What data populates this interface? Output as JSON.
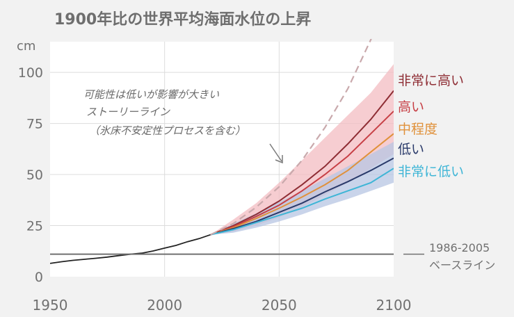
{
  "chart_data": {
    "type": "line",
    "title": "1900年比の世界平均海面水位の上昇",
    "ylabel": "cm",
    "xlabel": "",
    "xlim": [
      1950,
      2100
    ],
    "ylim": [
      0,
      115
    ],
    "x_ticks": [
      1950,
      2000,
      2050,
      2100
    ],
    "y_ticks": [
      0,
      25,
      50,
      75,
      100
    ],
    "grid": true,
    "baseline": {
      "value": 11,
      "label_lines": [
        "1986-2005",
        "ベースライン"
      ]
    },
    "observed": {
      "color": "#222222",
      "x": [
        1950,
        1955,
        1960,
        1965,
        1970,
        1975,
        1980,
        1985,
        1990,
        1995,
        2000,
        2005,
        2010,
        2015,
        2020
      ],
      "y": [
        6.5,
        7.3,
        8.0,
        8.5,
        9.0,
        9.6,
        10.3,
        11.0,
        11.5,
        12.6,
        14.0,
        15.3,
        17.1,
        18.6,
        20.5
      ]
    },
    "low_likelihood_high_impact": {
      "color": "#c9a9ac",
      "annotation_lines": [
        "可能性は低いが影響が大きい",
        "ストーリーライン",
        "（氷床不安定性プロセスを含む）"
      ],
      "x": [
        2020,
        2030,
        2040,
        2050,
        2060,
        2070,
        2080,
        2090,
        2100
      ],
      "y": [
        20.5,
        26,
        34,
        44,
        57,
        73,
        92,
        116,
        145
      ]
    },
    "series": [
      {
        "name": "非常に高い",
        "color": "#8e2d34",
        "x": [
          2020,
          2030,
          2040,
          2050,
          2060,
          2070,
          2080,
          2090,
          2100
        ],
        "y": [
          20.5,
          25,
          30.5,
          37,
          45,
          54,
          65,
          77,
          91
        ],
        "band_low": [
          20.5,
          22,
          25,
          29,
          34,
          40,
          46,
          53,
          60
        ],
        "band_high": [
          20.5,
          28,
          36,
          46,
          57,
          68,
          79,
          90,
          104
        ]
      },
      {
        "name": "高い",
        "color": "#c73f45",
        "x": [
          2020,
          2030,
          2040,
          2050,
          2060,
          2070,
          2080,
          2090,
          2100
        ],
        "y": [
          20.5,
          24.5,
          29.5,
          35,
          42,
          50,
          59,
          70,
          81
        ]
      },
      {
        "name": "中程度",
        "color": "#e0913b",
        "x": [
          2020,
          2030,
          2040,
          2050,
          2060,
          2070,
          2080,
          2090,
          2100
        ],
        "y": [
          20.5,
          24,
          28.5,
          33.5,
          39,
          45,
          52,
          61,
          70
        ]
      },
      {
        "name": "低い",
        "color": "#2a3a6a",
        "x": [
          2020,
          2030,
          2040,
          2050,
          2060,
          2070,
          2080,
          2090,
          2100
        ],
        "y": [
          20.5,
          23.5,
          27,
          31.5,
          36,
          41.5,
          46.5,
          52,
          58
        ],
        "band_low": [
          20.5,
          21.5,
          24,
          27,
          30.5,
          34.5,
          38,
          42,
          46
        ],
        "band_high": [
          20.5,
          26,
          31,
          36.5,
          42,
          48,
          54,
          60,
          66
        ]
      },
      {
        "name": "非常に低い",
        "color": "#3eb5d6",
        "x": [
          2020,
          2030,
          2040,
          2050,
          2060,
          2070,
          2080,
          2090,
          2100
        ],
        "y": [
          20.5,
          23,
          26.5,
          30,
          33.5,
          38,
          42,
          46,
          53
        ]
      }
    ]
  },
  "ui": {
    "colors": {
      "background": "#f2f2f2",
      "plot_background": "#ffffff",
      "gridline": "#dcdcdc",
      "axis_text": "#707070",
      "baseline": "#707070",
      "band_high": "#f3bcc2",
      "band_low": "#b7c5e3"
    }
  }
}
